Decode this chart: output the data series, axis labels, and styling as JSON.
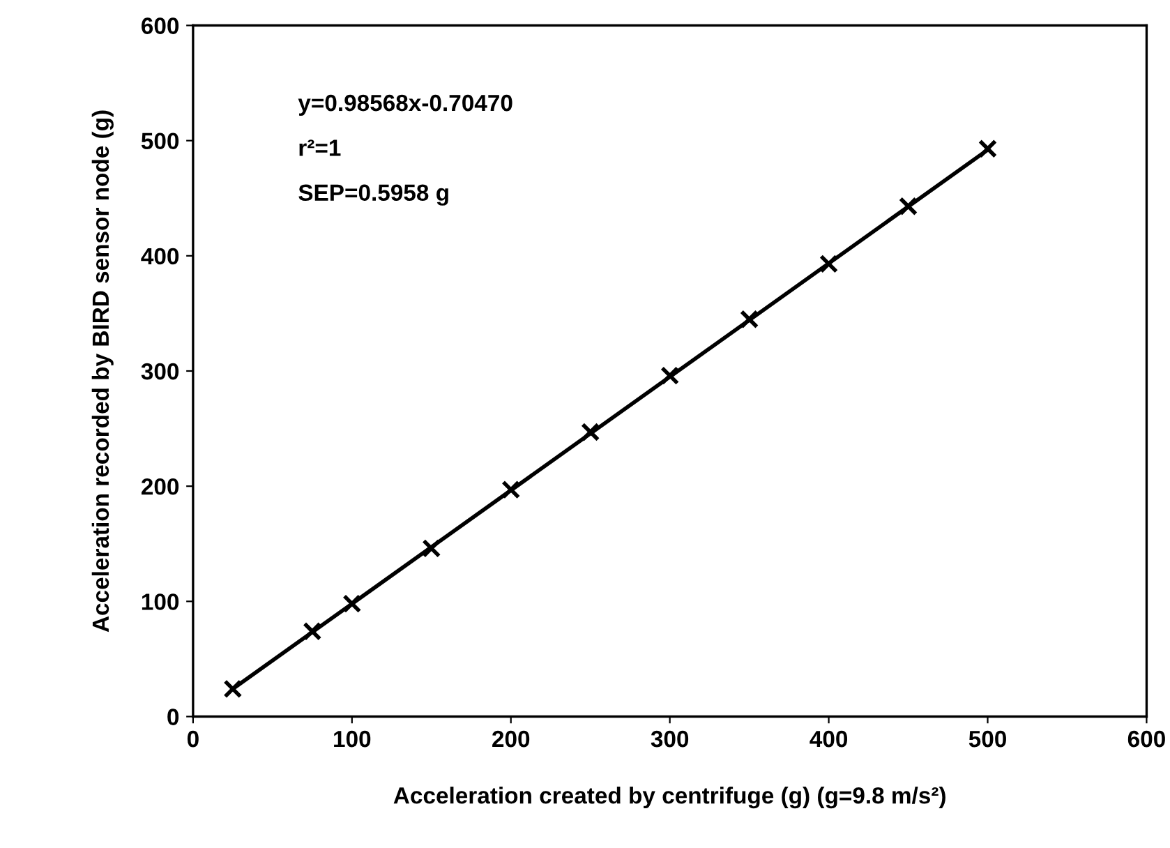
{
  "chart_data": {
    "type": "line",
    "xlabel": "Acceleration created by centrifuge (g) (g=9.8 m/s²)",
    "ylabel": "Acceleration recorded by BIRD sensor node (g)",
    "annotations": [
      "y=0.98568x-0.70470",
      "r²=1",
      "SEP=0.5958 g"
    ],
    "xlim": [
      0,
      600
    ],
    "xticks": [
      0,
      100,
      200,
      300,
      400,
      500,
      600
    ],
    "ylim": [
      0,
      600
    ],
    "yticks": [
      0,
      100,
      200,
      300,
      400,
      500,
      600
    ],
    "grid": false,
    "legend": false,
    "series": [
      {
        "type": "scatter",
        "marker": "cross",
        "color": "#000000",
        "x": [
          25,
          75,
          100,
          150,
          200,
          250,
          300,
          350,
          400,
          450,
          500
        ],
        "values": [
          24,
          74,
          98,
          146,
          197,
          247,
          296,
          345,
          393,
          443,
          493
        ]
      },
      {
        "color": "#000000",
        "x": [
          25,
          500
        ],
        "values": [
          24,
          492
        ]
      }
    ]
  }
}
